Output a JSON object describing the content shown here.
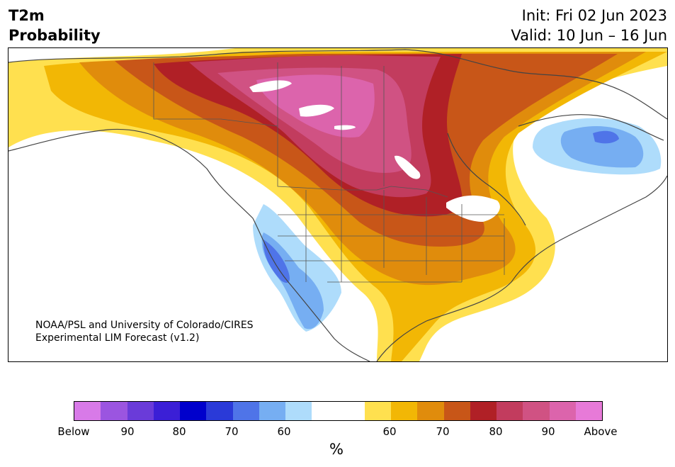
{
  "header": {
    "title_line1": "T2m",
    "title_line2": "Probability",
    "init": "Init: Fri 02 Jun 2023",
    "valid": "Valid: 10 Jun – 16 Jun"
  },
  "map": {
    "credit_line1": "NOAA/PSL and University of Colorado/CIRES",
    "credit_line2": "Experimental LIM Forecast (v1.2)"
  },
  "colorbar": {
    "colors": [
      "#d87ae8",
      "#9b55e0",
      "#6a3bd9",
      "#3b1fd6",
      "#0000cc",
      "#2a3ad8",
      "#4f74e8",
      "#76aef2",
      "#aedcfb",
      "#ffffff",
      "#ffffff",
      "#ffe04f",
      "#f2b705",
      "#e08c0c",
      "#c85618",
      "#b02026",
      "#c23c5e",
      "#d05283",
      "#dc64ac",
      "#e77ad8"
    ],
    "labels": [
      "Below",
      "90",
      "80",
      "70",
      "60",
      "60",
      "70",
      "80",
      "90",
      "Above"
    ],
    "unit": "%"
  }
}
